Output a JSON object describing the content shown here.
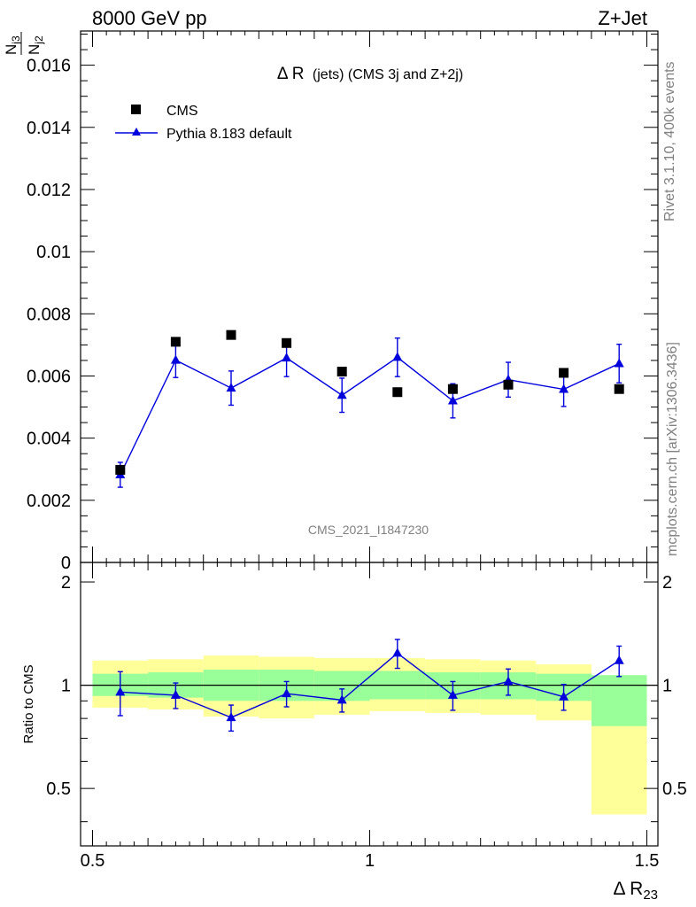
{
  "header": {
    "left": "8000 GeV pp",
    "right": "Z+Jet"
  },
  "side": {
    "rivet": "Rivet 3.1.10,  400k events",
    "mcplots": "mcplots.cern.ch [arXiv:1306.3436]"
  },
  "colors": {
    "mc": "#0000dd",
    "data": "#000000",
    "band_inner": "#99ff99",
    "band_outer": "#ffff99",
    "watermark": "#808080"
  },
  "chart_data": [
    {
      "type": "scatter",
      "title": "Δ R (jets) (CMS 3j and Z+2j)",
      "title_parts": {
        "delta": "Δ R",
        "rest": "(jets) (CMS 3j and Z+2j)"
      },
      "ylabel": {
        "num_n": "N",
        "num_sub": "j3",
        "den_n": "N",
        "den_sub": "j2"
      },
      "xlabel": {
        "main": "Δ R",
        "sub": "23"
      },
      "watermark": "CMS_2021_I1847230",
      "xlim": [
        0.5,
        1.5
      ],
      "ylim": [
        0,
        0.0171
      ],
      "yticks": [
        0,
        0.002,
        0.004,
        0.006,
        0.008,
        0.01,
        0.012,
        0.014,
        0.016
      ],
      "ytick_labels": [
        "0",
        "0.002",
        "0.004",
        "0.006",
        "0.008",
        "0.01",
        "0.012",
        "0.014",
        "0.016"
      ],
      "legend": [
        "CMS",
        "Pythia 8.183 default"
      ],
      "x": [
        0.55,
        0.65,
        0.75,
        0.85,
        0.95,
        1.05,
        1.15,
        1.25,
        1.35,
        1.45
      ],
      "series": [
        {
          "name": "CMS",
          "values": [
            0.00298,
            0.0071,
            0.00732,
            0.00706,
            0.00614,
            0.00548,
            0.00558,
            0.00572,
            0.0061,
            0.00558
          ]
        },
        {
          "name": "Pythia 8.183 default",
          "values": [
            0.00282,
            0.00651,
            0.00561,
            0.00658,
            0.00538,
            0.0066,
            0.0052,
            0.00588,
            0.00557,
            0.0064
          ],
          "err": [
            0.0004,
            0.00056,
            0.00055,
            0.0006,
            0.00055,
            0.00062,
            0.00055,
            0.00056,
            0.00055,
            0.00062
          ]
        }
      ]
    },
    {
      "type": "scatter",
      "title": "Ratio to CMS",
      "ylabel": "Ratio to CMS",
      "xlim": [
        0.5,
        1.5
      ],
      "ylim": [
        0.34,
        2.28
      ],
      "ytick_labels": [
        "0.5",
        "1",
        "2"
      ],
      "yticks": [
        0.5,
        1,
        2
      ],
      "xticks": [
        0.5,
        1,
        1.5
      ],
      "xtick_labels": [
        "0.5",
        "1",
        "1.5"
      ],
      "bins": [
        0.5,
        0.6,
        0.7,
        0.8,
        0.9,
        1.0,
        1.1,
        1.2,
        1.3,
        1.4,
        1.5
      ],
      "band_inner": [
        [
          0.93,
          1.08
        ],
        [
          0.92,
          1.09
        ],
        [
          0.9,
          1.11
        ],
        [
          0.9,
          1.11
        ],
        [
          0.9,
          1.1
        ],
        [
          0.91,
          1.1
        ],
        [
          0.91,
          1.09
        ],
        [
          0.91,
          1.09
        ],
        [
          0.9,
          1.08
        ],
        [
          0.76,
          1.07
        ]
      ],
      "band_outer": [
        [
          0.86,
          1.18
        ],
        [
          0.85,
          1.19
        ],
        [
          0.81,
          1.22
        ],
        [
          0.8,
          1.21
        ],
        [
          0.82,
          1.2
        ],
        [
          0.84,
          1.2
        ],
        [
          0.83,
          1.19
        ],
        [
          0.82,
          1.18
        ],
        [
          0.79,
          1.15
        ],
        [
          0.42,
          1.06
        ]
      ],
      "x": [
        0.55,
        0.65,
        0.75,
        0.85,
        0.95,
        1.05,
        1.15,
        1.25,
        1.35,
        1.45
      ],
      "series": [
        {
          "name": "Pythia 8.183 default",
          "values": [
            0.955,
            0.935,
            0.805,
            0.945,
            0.905,
            1.24,
            0.935,
            1.025,
            0.925,
            1.18
          ],
          "err": [
            0.14,
            0.08,
            0.07,
            0.08,
            0.07,
            0.12,
            0.09,
            0.09,
            0.08,
            0.12
          ]
        }
      ]
    }
  ]
}
